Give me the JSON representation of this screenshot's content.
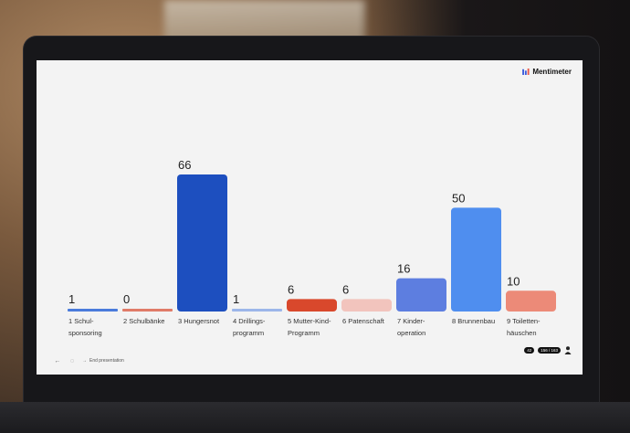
{
  "brand": {
    "name": "Mentimeter",
    "logo_icon": "mentimeter-logo-icon"
  },
  "chart_data": {
    "type": "bar",
    "title": "",
    "xlabel": "",
    "ylabel": "",
    "ylim": [
      0,
      66
    ],
    "grid": false,
    "categories": [
      "1 Schul-\nsponsoring",
      "2 Schulbänke",
      "3 Hungersnot",
      "4 Drillings-\nprogramm",
      "5 Mutter-Kind-\nProgramm",
      "6 Patenschaft",
      "7 Kinder-\noperation",
      "8 Brunnenbau",
      "9 Toiletten-\nhäuschen"
    ],
    "values": [
      1,
      0,
      66,
      1,
      6,
      6,
      16,
      50,
      10
    ],
    "colors": [
      "#4a7bdb",
      "#e07b68",
      "#1d4fbf",
      "#9cb6ea",
      "#d9482c",
      "#f2c4bd",
      "#5d7ee0",
      "#4f8eef",
      "#ec8a78"
    ]
  },
  "footer": {
    "end_presentation_label": "End presentation",
    "icons": [
      "back-arrow-icon",
      "lightbulb-icon",
      "arrow-right-icon"
    ]
  },
  "counters": {
    "votes": "42",
    "participants": "156 / 163"
  }
}
